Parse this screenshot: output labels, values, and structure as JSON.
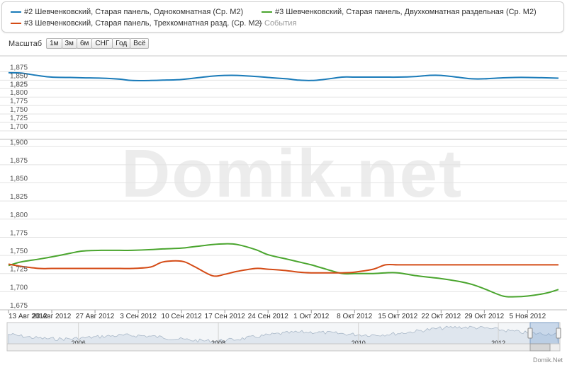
{
  "legend": {
    "items": [
      {
        "label": "#2 Шевченковский, Старая панель, Однокомнатная (Ср. М2)",
        "color": "#1a7bb9"
      },
      {
        "label": "#3 Шевченковский, Старая панель, Двухкомнатная раздельная (Ср. М2)",
        "color": "#4aa52e"
      },
      {
        "label": "#3 Шевченковский, Старая панель, Трехкомнатная разд. (Ср. М2)",
        "color": "#d44b16"
      }
    ],
    "events_label": "События"
  },
  "toolbar": {
    "scale_label": "Масштаб",
    "buttons": [
      "1м",
      "3м",
      "6м",
      "СНГ",
      "Год",
      "Всё"
    ]
  },
  "watermark": "Domik.net",
  "credit": "Domik.Net",
  "chart_data": [
    {
      "type": "line",
      "panel": "upper",
      "ylim": [
        1.675,
        1.88
      ],
      "yticks": [
        "1,675",
        "1,700",
        "1,725",
        "1,750",
        "1,775",
        "1,800",
        "1,825",
        "1,850",
        "1,875"
      ],
      "series_ref": "legend.items.0",
      "x": [
        "2012-08-13",
        "2012-08-15",
        "2012-08-18",
        "2012-08-20",
        "2012-08-23",
        "2012-08-25",
        "2012-08-28",
        "2012-08-31",
        "2012-09-02",
        "2012-09-05",
        "2012-09-07",
        "2012-09-10",
        "2012-09-12",
        "2012-09-15",
        "2012-09-17",
        "2012-09-19",
        "2012-09-22",
        "2012-09-24",
        "2012-09-27",
        "2012-09-29",
        "2012-10-01",
        "2012-10-03",
        "2012-10-06",
        "2012-10-08",
        "2012-10-11",
        "2012-10-13",
        "2012-10-15",
        "2012-10-18",
        "2012-10-20",
        "2012-10-22",
        "2012-10-25",
        "2012-10-27",
        "2012-10-29",
        "2012-11-01",
        "2012-11-03",
        "2012-11-05",
        "2012-11-08",
        "2012-11-10"
      ],
      "values": [
        1.872,
        1.871,
        1.863,
        1.859,
        1.858,
        1.857,
        1.856,
        1.853,
        1.849,
        1.849,
        1.85,
        1.852,
        1.856,
        1.862,
        1.864,
        1.864,
        1.861,
        1.858,
        1.854,
        1.85,
        1.849,
        1.852,
        1.859,
        1.859,
        1.859,
        1.859,
        1.859,
        1.861,
        1.864,
        1.864,
        1.858,
        1.854,
        1.854,
        1.857,
        1.858,
        1.858,
        1.857,
        1.856
      ]
    },
    {
      "type": "line",
      "panel": "lower",
      "ylim": [
        1.675,
        1.91
      ],
      "yticks": [
        "1,675",
        "1,700",
        "1,725",
        "1,750",
        "1,775",
        "1,800",
        "1,825",
        "1,850",
        "1,875",
        "1,900"
      ],
      "series": [
        {
          "series_ref": "legend.items.1",
          "x": [
            "2012-08-13",
            "2012-08-15",
            "2012-08-18",
            "2012-08-20",
            "2012-08-23",
            "2012-08-25",
            "2012-08-28",
            "2012-08-31",
            "2012-09-02",
            "2012-09-05",
            "2012-09-07",
            "2012-09-10",
            "2012-09-12",
            "2012-09-15",
            "2012-09-17",
            "2012-09-19",
            "2012-09-22",
            "2012-09-24",
            "2012-09-27",
            "2012-09-29",
            "2012-10-01",
            "2012-10-03",
            "2012-10-06",
            "2012-10-08",
            "2012-10-11",
            "2012-10-13",
            "2012-10-15",
            "2012-10-18",
            "2012-10-20",
            "2012-10-22",
            "2012-10-25",
            "2012-10-27",
            "2012-10-29",
            "2012-11-01",
            "2012-11-03",
            "2012-11-05",
            "2012-11-08",
            "2012-11-10"
          ],
          "values": [
            1.736,
            1.741,
            1.745,
            1.748,
            1.753,
            1.756,
            1.757,
            1.757,
            1.757,
            1.758,
            1.759,
            1.76,
            1.762,
            1.765,
            1.766,
            1.765,
            1.758,
            1.751,
            1.745,
            1.741,
            1.737,
            1.732,
            1.725,
            1.725,
            1.725,
            1.726,
            1.726,
            1.722,
            1.72,
            1.718,
            1.714,
            1.71,
            1.704,
            1.694,
            1.693,
            1.694,
            1.698,
            1.703
          ]
        },
        {
          "series_ref": "legend.items.2",
          "x": [
            "2012-08-13",
            "2012-08-15",
            "2012-08-18",
            "2012-08-20",
            "2012-08-23",
            "2012-08-25",
            "2012-08-28",
            "2012-08-31",
            "2012-09-02",
            "2012-09-05",
            "2012-09-07",
            "2012-09-10",
            "2012-09-12",
            "2012-09-15",
            "2012-09-17",
            "2012-09-19",
            "2012-09-22",
            "2012-09-24",
            "2012-09-27",
            "2012-09-29",
            "2012-10-01",
            "2012-10-03",
            "2012-10-06",
            "2012-10-08",
            "2012-10-11",
            "2012-10-13",
            "2012-10-15",
            "2012-10-18",
            "2012-10-20",
            "2012-10-22",
            "2012-10-25",
            "2012-10-27",
            "2012-10-29",
            "2012-11-01",
            "2012-11-03",
            "2012-11-05",
            "2012-11-08",
            "2012-11-10"
          ],
          "values": [
            1.738,
            1.735,
            1.732,
            1.732,
            1.732,
            1.732,
            1.732,
            1.732,
            1.732,
            1.734,
            1.741,
            1.742,
            1.735,
            1.722,
            1.724,
            1.728,
            1.732,
            1.731,
            1.729,
            1.727,
            1.726,
            1.726,
            1.726,
            1.727,
            1.731,
            1.737,
            1.737,
            1.737,
            1.737,
            1.737,
            1.737,
            1.737,
            1.737,
            1.737,
            1.737,
            1.737,
            1.737,
            1.737
          ]
        }
      ]
    }
  ],
  "x_axis": {
    "tick_labels": [
      "13 Авг 2012",
      "20 Авг 2012",
      "27 Авг 2012",
      "3 Сен 2012",
      "10 Сен 2012",
      "17 Сен 2012",
      "24 Сен 2012",
      "1 Окт 2012",
      "8 Окт 2012",
      "15 Окт 2012",
      "22 Окт 2012",
      "29 Окт 2012",
      "5 Ноя 2012"
    ],
    "tick_dates": [
      "2012-08-13",
      "2012-08-20",
      "2012-08-27",
      "2012-09-03",
      "2012-09-10",
      "2012-09-17",
      "2012-09-24",
      "2012-10-01",
      "2012-10-08",
      "2012-10-15",
      "2012-10-22",
      "2012-10-29",
      "2012-11-05"
    ],
    "range": [
      "2012-08-13",
      "2012-11-10"
    ]
  },
  "navigator": {
    "year_labels": [
      "2006",
      "2008",
      "2010",
      "2012"
    ],
    "range": [
      "2005-01-01",
      "2012-11-10"
    ],
    "selection": [
      "2012-08-13",
      "2012-11-10"
    ],
    "handle_grip": "|||"
  }
}
